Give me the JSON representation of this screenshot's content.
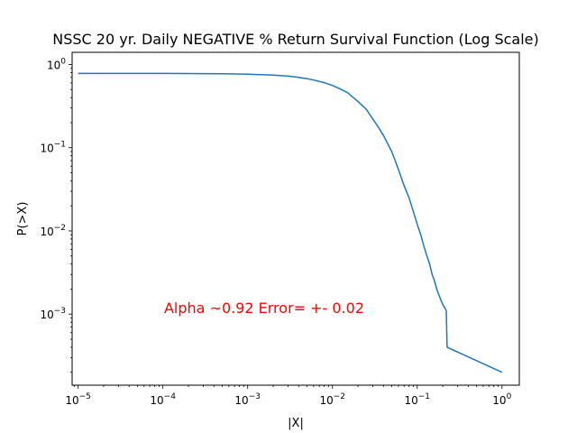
{
  "chart_data": {
    "type": "line",
    "title": "NSSC 20 yr. Daily NEGATIVE % Return Survival Function (Log Scale)",
    "xlabel": "|X|",
    "ylabel": "P(>X)",
    "xscale": "log",
    "yscale": "log",
    "xlim": [
      8.5e-06,
      1.6
    ],
    "ylim": [
      0.00014,
      1.4
    ],
    "grid": false,
    "legend": "none",
    "line_color": "#1f77b4",
    "annotation_color": "#ff0000",
    "annotation": "Alpha ~0.92  Error= +- 0.02",
    "x_ticks": [
      {
        "value": 1e-05,
        "base": "10",
        "exp": "−5"
      },
      {
        "value": 0.0001,
        "base": "10",
        "exp": "−4"
      },
      {
        "value": 0.001,
        "base": "10",
        "exp": "−3"
      },
      {
        "value": 0.01,
        "base": "10",
        "exp": "−2"
      },
      {
        "value": 0.1,
        "base": "10",
        "exp": "−1"
      },
      {
        "value": 1,
        "base": "10",
        "exp": "0"
      }
    ],
    "y_ticks": [
      {
        "value": 0.001,
        "base": "10",
        "exp": "−3"
      },
      {
        "value": 0.01,
        "base": "10",
        "exp": "−2"
      },
      {
        "value": 0.1,
        "base": "10",
        "exp": "−1"
      },
      {
        "value": 1,
        "base": "10",
        "exp": "0"
      }
    ],
    "series": [
      {
        "x": [
          1e-05,
          0.0001,
          0.0005,
          0.001,
          0.002,
          0.003,
          0.004,
          0.005,
          0.006,
          0.008,
          0.01,
          0.012,
          0.015,
          0.02,
          0.025,
          0.03,
          0.035,
          0.04,
          0.05,
          0.06,
          0.07,
          0.08,
          0.09,
          0.1,
          0.11,
          0.12,
          0.13,
          0.14,
          0.15,
          0.16,
          0.17,
          0.18,
          0.2,
          0.21,
          0.22,
          0.222,
          0.225,
          1.0
        ],
        "y": [
          0.78,
          0.78,
          0.775,
          0.765,
          0.745,
          0.725,
          0.7,
          0.675,
          0.65,
          0.605,
          0.56,
          0.515,
          0.46,
          0.36,
          0.29,
          0.22,
          0.175,
          0.14,
          0.09,
          0.055,
          0.035,
          0.025,
          0.017,
          0.012,
          0.009,
          0.0065,
          0.005,
          0.004,
          0.003,
          0.0025,
          0.002,
          0.0017,
          0.0013,
          0.0012,
          0.0011,
          0.0008,
          0.0004,
          0.0002
        ]
      }
    ]
  }
}
